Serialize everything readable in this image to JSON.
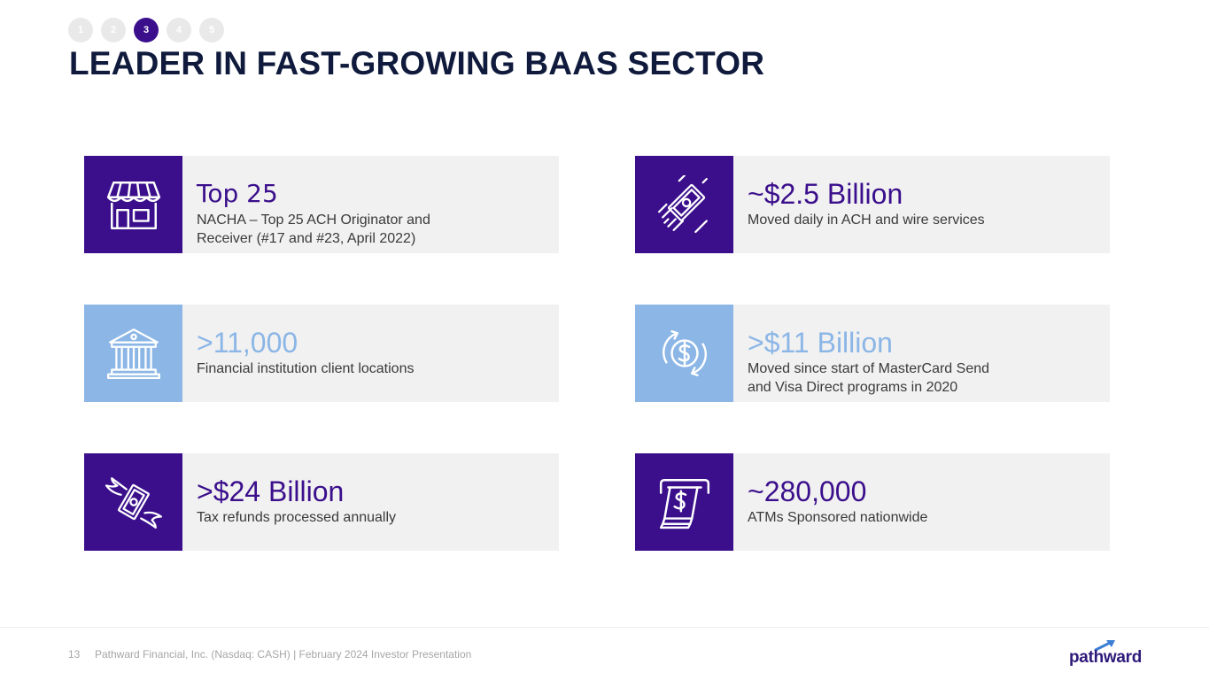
{
  "progress": {
    "steps": [
      "1",
      "2",
      "3",
      "4",
      "5"
    ],
    "active_index": 2,
    "colors": {
      "active": "#3b0f8c",
      "inactive": "#e9e9e9"
    }
  },
  "title": "LEADER IN FAST-GROWING BAAS SECTOR",
  "colors": {
    "dark_purple": "#3b0f8c",
    "light_blue": "#8bb6e6",
    "card_bg": "#f1f1f1"
  },
  "cards": [
    {
      "icon": "storefront-icon",
      "headline": "Top 25",
      "subtext": "NACHA – Top 25 ACH Originator and Receiver (#17 and #23, April 2022)",
      "accent": "#3b0f8c"
    },
    {
      "icon": "flying-money-icon",
      "headline": "~$2.5 Billion",
      "subtext": "Moved daily in ACH and wire services",
      "accent": "#3b0f8c"
    },
    {
      "icon": "bank-building-icon",
      "headline": ">11,000",
      "subtext": "Financial institution client locations",
      "accent": "#8bb6e6"
    },
    {
      "icon": "dollar-cycle-icon",
      "headline": ">$11 Billion",
      "subtext": "Moved since start of MasterCard Send and Visa Direct programs in 2020",
      "accent": "#8bb6e6"
    },
    {
      "icon": "winged-money-icon",
      "headline": ">$24 Billion",
      "subtext": "Tax refunds processed annually",
      "accent": "#3b0f8c"
    },
    {
      "icon": "atm-cash-icon",
      "headline": "~280,000",
      "subtext": "ATMs Sponsored nationwide",
      "accent": "#3b0f8c"
    }
  ],
  "footer": {
    "page_number": "13",
    "text": "Pathward Financial, Inc. (Nasdaq: CASH) | February 2024 Investor Presentation",
    "logo_text": "pathward"
  }
}
